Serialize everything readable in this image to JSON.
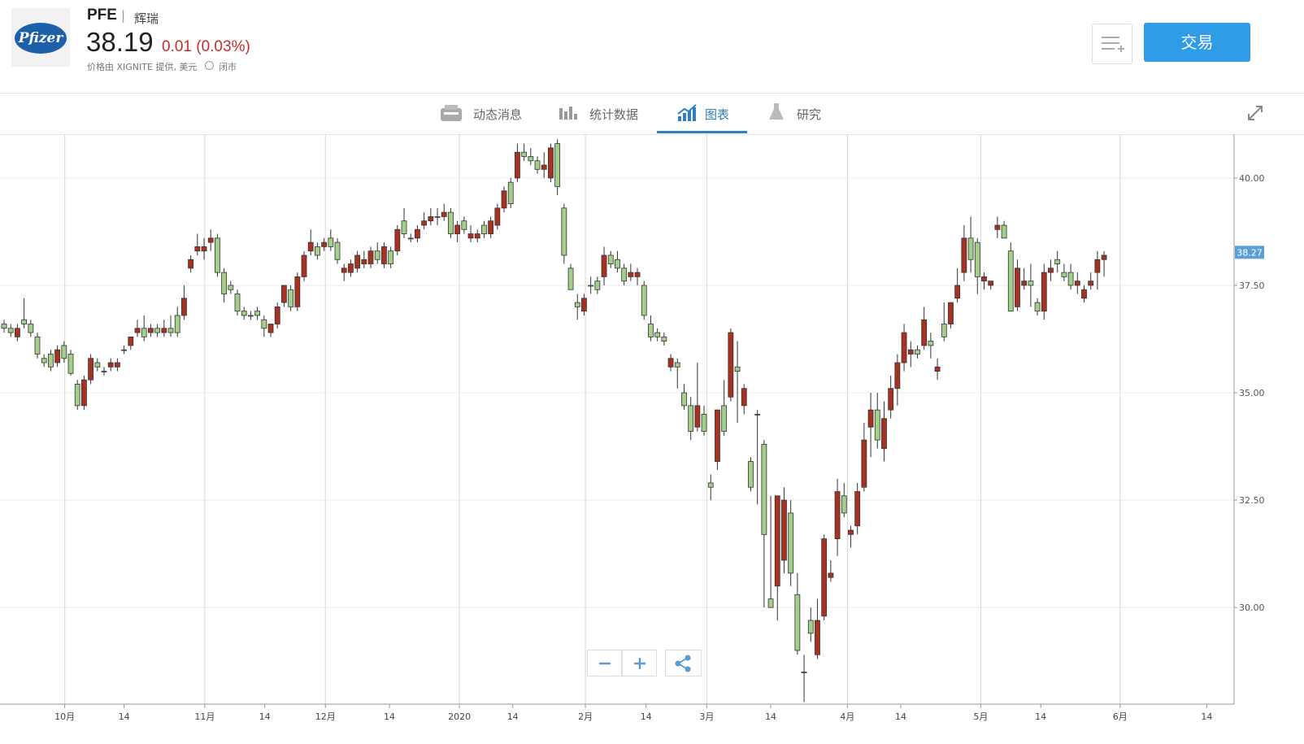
{
  "header": {
    "logo": "Pfizer",
    "symbol": "PFE",
    "name": "辉瑞",
    "price": "38.19",
    "change": "0.01 (0.03%)",
    "source": "价格由 XIGNITE 提供, 美元",
    "status": "闭市",
    "trade": "交易"
  },
  "tabs": [
    "动态消息",
    "统计数据",
    "图表",
    "研究"
  ],
  "chart_data": {
    "type": "candlestick",
    "up_color": "#a83222",
    "down_color": "#a3cf8b",
    "grid": true,
    "ylim": [
      27.75,
      41.02
    ],
    "yticks": [
      {
        "value": 30,
        "label": "30.00"
      },
      {
        "value": 32.5,
        "label": "32.50"
      },
      {
        "value": 35,
        "label": "35.00"
      },
      {
        "value": 37.5,
        "label": "37.50"
      },
      {
        "value": 40,
        "label": "40.00"
      }
    ],
    "last_price": 38.27,
    "xlim": [
      -0.61,
      184.5
    ],
    "xticks": [
      {
        "value": 9.1,
        "label": "10月"
      },
      {
        "value": 30.1,
        "label": "11月"
      },
      {
        "value": 48.2,
        "label": "12月"
      },
      {
        "value": 68.3,
        "label": "2020"
      },
      {
        "value": 87.2,
        "label": "2月"
      },
      {
        "value": 105.4,
        "label": "3月"
      },
      {
        "value": 126.5,
        "label": "4月"
      },
      {
        "value": 146.5,
        "label": "5月"
      },
      {
        "value": 167.4,
        "label": "6月"
      }
    ],
    "xticks_minor": [
      {
        "value": 18.0,
        "label": "14"
      },
      {
        "value": 39.1,
        "label": "14"
      },
      {
        "value": 57.8,
        "label": "14"
      },
      {
        "value": 76.3,
        "label": "14"
      },
      {
        "value": 96.3,
        "label": "14"
      },
      {
        "value": 115.0,
        "label": "14"
      },
      {
        "value": 134.5,
        "label": "14"
      },
      {
        "value": 155.5,
        "label": "14"
      },
      {
        "value": 180.4,
        "label": "14"
      }
    ],
    "open": [
      36.6,
      36.5,
      36.3,
      36.7,
      36.6,
      36.3,
      35.8,
      35.9,
      35.7,
      36.1,
      35.9,
      35.2,
      34.7,
      35.3,
      35.7,
      35.5,
      35.6,
      35.6,
      36.0,
      36.1,
      36.4,
      36.5,
      36.4,
      36.5,
      36.4,
      36.5,
      36.8,
      36.8,
      37.9,
      38.3,
      38.3,
      38.5,
      38.6,
      37.8,
      37.5,
      37.3,
      36.9,
      36.8,
      36.9,
      36.7,
      36.4,
      36.6,
      37.1,
      37.4,
      37.0,
      37.7,
      38.3,
      38.4,
      38.4,
      38.6,
      38.5,
      37.8,
      37.8,
      37.9,
      38.0,
      38.0,
      38.3,
      38.0,
      38.3,
      38.3,
      39.0,
      38.6,
      38.6,
      38.9,
      39.0,
      39.1,
      39.1,
      39.2,
      38.7,
      39.0,
      38.6,
      38.6,
      38.9,
      38.7,
      38.9,
      39.3,
      39.9,
      40.0,
      40.6,
      40.5,
      40.4,
      40.2,
      40.0,
      40.8,
      39.3,
      37.9,
      37.1,
      36.9,
      37.5,
      37.6,
      37.7,
      38.2,
      38.1,
      37.9,
      37.7,
      37.7,
      37.5,
      36.6,
      36.4,
      36.3,
      35.6,
      35.7,
      35.0,
      34.7,
      34.2,
      34.5,
      32.9,
      33.4,
      34.7,
      34.9,
      35.6,
      34.7,
      33.4,
      34.5,
      33.8,
      30.2,
      30.5,
      31.1,
      32.2,
      30.3,
      28.5,
      29.7,
      28.9,
      29.8,
      30.7,
      31.6,
      32.6,
      31.7,
      31.9,
      32.8,
      34.2,
      34.6,
      33.7,
      34.6,
      35.1,
      35.7,
      35.9,
      36.0,
      36.1,
      36.2,
      35.5,
      36.6,
      36.6,
      37.2,
      37.8,
      38.6,
      38.5,
      37.6,
      37.5,
      38.8,
      38.9,
      38.3,
      37.0,
      37.5,
      37.6,
      37.1,
      36.9,
      37.8,
      38.1,
      37.8,
      37.8,
      37.5,
      37.2,
      37.5,
      37.8,
      38.1
    ],
    "high": [
      36.7,
      36.6,
      36.6,
      37.2,
      36.7,
      36.4,
      35.9,
      36.0,
      36.1,
      36.2,
      36.0,
      35.3,
      35.4,
      35.9,
      35.8,
      35.6,
      35.8,
      35.8,
      36.1,
      36.3,
      36.7,
      36.8,
      36.6,
      36.6,
      36.7,
      36.8,
      37.0,
      37.5,
      38.2,
      38.7,
      38.6,
      38.8,
      38.7,
      37.9,
      37.6,
      37.4,
      37.0,
      36.9,
      37.0,
      36.8,
      36.6,
      37.1,
      37.5,
      37.5,
      37.8,
      38.3,
      38.8,
      38.5,
      38.6,
      38.8,
      38.6,
      38.0,
      38.1,
      38.3,
      38.3,
      38.4,
      38.5,
      38.5,
      38.4,
      38.9,
      39.3,
      38.7,
      38.9,
      39.2,
      39.3,
      39.3,
      39.4,
      39.3,
      39.0,
      39.1,
      38.9,
      38.8,
      39.0,
      39.1,
      39.4,
      39.8,
      40.0,
      40.8,
      40.8,
      40.7,
      40.5,
      40.6,
      40.8,
      40.9,
      39.4,
      38.0,
      37.3,
      37.3,
      37.7,
      37.7,
      38.4,
      38.3,
      38.3,
      38.0,
      38.0,
      37.9,
      37.6,
      36.8,
      36.5,
      36.4,
      35.9,
      35.8,
      35.2,
      34.9,
      35.7,
      34.7,
      33.1,
      34.6,
      35.3,
      36.5,
      36.2,
      35.2,
      33.5,
      34.6,
      33.9,
      32.6,
      32.6,
      32.8,
      32.5,
      30.8,
      28.9,
      30.0,
      30.2,
      31.7,
      31.1,
      33.0,
      32.9,
      31.9,
      32.9,
      34.3,
      35.0,
      35.0,
      34.8,
      35.4,
      35.9,
      36.6,
      36.2,
      36.1,
      37.0,
      36.4,
      35.8,
      37.1,
      37.1,
      37.9,
      38.9,
      39.1,
      38.6,
      37.8,
      37.6,
      39.1,
      39.0,
      38.5,
      38.1,
      37.9,
      38.0,
      37.2,
      38.0,
      38.1,
      38.3,
      38.0,
      38.0,
      37.8,
      37.5,
      37.8,
      38.3,
      38.3
    ],
    "low": [
      36.4,
      36.3,
      36.2,
      36.5,
      36.3,
      35.8,
      35.6,
      35.5,
      35.6,
      35.7,
      35.4,
      34.6,
      34.6,
      35.2,
      35.5,
      35.4,
      35.5,
      35.5,
      35.9,
      36.0,
      36.3,
      36.2,
      36.3,
      36.3,
      36.3,
      36.3,
      36.3,
      36.7,
      37.8,
      38.2,
      38.1,
      38.3,
      37.7,
      37.1,
      37.3,
      36.8,
      36.7,
      36.7,
      36.7,
      36.3,
      36.3,
      36.5,
      37.0,
      36.9,
      36.9,
      37.6,
      38.2,
      38.1,
      38.3,
      38.3,
      38.0,
      37.6,
      37.7,
      37.8,
      37.9,
      37.9,
      38.0,
      37.9,
      37.9,
      38.2,
      38.6,
      38.5,
      38.5,
      38.8,
      38.9,
      38.9,
      39.0,
      38.6,
      38.5,
      38.7,
      38.5,
      38.5,
      38.6,
      38.6,
      38.8,
      39.2,
      39.3,
      39.9,
      40.4,
      40.3,
      40.1,
      40.0,
      39.9,
      39.6,
      38.0,
      37.4,
      36.7,
      36.8,
      37.3,
      37.3,
      37.5,
      37.9,
      37.8,
      37.5,
      37.6,
      37.5,
      36.7,
      36.2,
      36.2,
      36.1,
      35.5,
      35.1,
      34.6,
      33.9,
      34.1,
      34.0,
      32.5,
      33.2,
      34.0,
      34.8,
      34.3,
      34.5,
      32.7,
      32.4,
      30.0,
      30.0,
      29.7,
      30.8,
      30.5,
      28.9,
      27.8,
      29.2,
      28.8,
      29.7,
      30.6,
      31.2,
      32.1,
      31.4,
      31.7,
      32.7,
      33.5,
      33.7,
      33.4,
      34.4,
      34.7,
      35.5,
      35.6,
      35.8,
      36.0,
      35.8,
      35.3,
      36.2,
      36.5,
      37.1,
      37.6,
      37.8,
      37.3,
      37.4,
      37.4,
      38.6,
      38.6,
      36.9,
      36.9,
      37.4,
      37.0,
      36.8,
      36.7,
      37.6,
      37.8,
      37.6,
      37.4,
      37.3,
      37.1,
      37.4,
      37.4,
      37.7
    ],
    "close": [
      36.5,
      36.4,
      36.5,
      36.6,
      36.4,
      35.9,
      35.7,
      35.6,
      36.0,
      35.8,
      35.45,
      34.7,
      35.3,
      35.8,
      35.6,
      35.5,
      35.7,
      35.7,
      36.0,
      36.3,
      36.5,
      36.3,
      36.5,
      36.4,
      36.5,
      36.4,
      36.4,
      37.2,
      38.1,
      38.4,
      38.4,
      38.6,
      37.8,
      37.3,
      37.4,
      36.9,
      36.8,
      36.8,
      36.8,
      36.5,
      36.6,
      37.0,
      37.5,
      37.0,
      37.7,
      38.2,
      38.5,
      38.2,
      38.5,
      38.4,
      38.1,
      37.9,
      38.0,
      38.2,
      38.1,
      38.3,
      38.1,
      38.4,
      38.0,
      38.8,
      38.7,
      38.6,
      38.8,
      39.0,
      39.1,
      39.1,
      39.2,
      38.7,
      38.9,
      38.8,
      38.7,
      38.7,
      38.7,
      39.0,
      39.3,
      39.7,
      39.4,
      40.6,
      40.5,
      40.4,
      40.2,
      40.3,
      40.7,
      39.8,
      38.2,
      37.4,
      37.0,
      37.2,
      37.5,
      37.4,
      38.2,
      38.0,
      37.9,
      37.6,
      37.8,
      37.8,
      36.8,
      36.3,
      36.3,
      36.2,
      35.8,
      35.6,
      34.7,
      34.1,
      34.7,
      34.1,
      32.8,
      34.6,
      34.1,
      36.4,
      35.5,
      35.1,
      32.8,
      34.5,
      31.7,
      30.0,
      32.6,
      32.5,
      30.8,
      29.0,
      28.5,
      29.4,
      29.7,
      31.6,
      30.8,
      32.7,
      32.2,
      31.8,
      32.7,
      33.9,
      34.6,
      33.9,
      34.4,
      35.1,
      35.7,
      36.4,
      36.0,
      35.9,
      36.7,
      36.1,
      35.6,
      36.3,
      37.1,
      37.5,
      38.6,
      38.1,
      37.7,
      37.7,
      37.6,
      38.9,
      38.6,
      36.9,
      37.9,
      37.6,
      37.5,
      36.9,
      37.8,
      37.9,
      38.0,
      37.7,
      37.5,
      37.6,
      37.4,
      37.6,
      38.1,
      38.2
    ]
  }
}
